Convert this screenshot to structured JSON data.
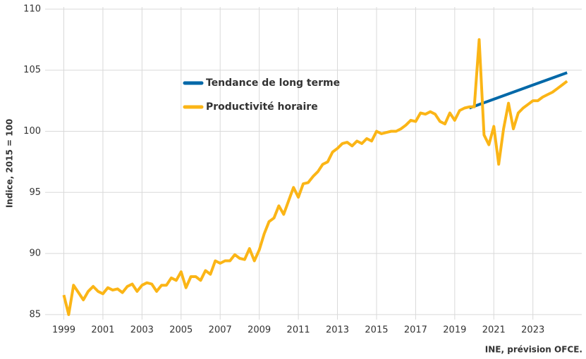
{
  "chart_data": {
    "type": "line",
    "ylabel": "Indice, 2015 = 100",
    "source": "INE, prévision OFCE.",
    "xlim": [
      1997.9,
      2025.5
    ],
    "ylim": [
      84.3,
      110.4
    ],
    "xticks": [
      1999,
      2001,
      2003,
      2005,
      2007,
      2009,
      2011,
      2013,
      2015,
      2017,
      2019,
      2021,
      2023
    ],
    "yticks": [
      85,
      90,
      95,
      100,
      105,
      110
    ],
    "grid": true,
    "legend": "upper-center",
    "series": [
      {
        "name": "Tendance de long terme",
        "color": "#0068a8",
        "x": [
          2019.75,
          2024.75
        ],
        "values": [
          101.9,
          104.8
        ]
      },
      {
        "name": "Productivité horaire",
        "color": "#fbb516",
        "x": [
          1999,
          1999.25,
          1999.5,
          1999.75,
          2000,
          2000.25,
          2000.5,
          2000.75,
          2001,
          2001.25,
          2001.5,
          2001.75,
          2002,
          2002.25,
          2002.5,
          2002.75,
          2003,
          2003.25,
          2003.5,
          2003.75,
          2004,
          2004.25,
          2004.5,
          2004.75,
          2005,
          2005.25,
          2005.5,
          2005.75,
          2006,
          2006.25,
          2006.5,
          2006.75,
          2007,
          2007.25,
          2007.5,
          2007.75,
          2008,
          2008.25,
          2008.5,
          2008.75,
          2009,
          2009.25,
          2009.5,
          2009.75,
          2010,
          2010.25,
          2010.5,
          2010.75,
          2011,
          2011.25,
          2011.5,
          2011.75,
          2012,
          2012.25,
          2012.5,
          2012.75,
          2013,
          2013.25,
          2013.5,
          2013.75,
          2014,
          2014.25,
          2014.5,
          2014.75,
          2015,
          2015.25,
          2015.5,
          2015.75,
          2016,
          2016.25,
          2016.5,
          2016.75,
          2017,
          2017.25,
          2017.5,
          2017.75,
          2018,
          2018.25,
          2018.5,
          2018.75,
          2019,
          2019.25,
          2019.5,
          2019.75,
          2020,
          2020.25,
          2020.5,
          2020.75,
          2021,
          2021.25,
          2021.5,
          2021.75,
          2022,
          2022.25,
          2022.5,
          2022.75,
          2023,
          2023.25,
          2023.5,
          2023.75,
          2024,
          2024.25,
          2024.5,
          2024.75
        ],
        "values": [
          86.6,
          85.0,
          87.4,
          86.8,
          86.2,
          86.9,
          87.3,
          86.9,
          86.7,
          87.2,
          87.0,
          87.1,
          86.8,
          87.3,
          87.5,
          86.9,
          87.4,
          87.6,
          87.5,
          86.9,
          87.4,
          87.4,
          88.0,
          87.8,
          88.5,
          87.2,
          88.1,
          88.1,
          87.8,
          88.6,
          88.3,
          89.4,
          89.2,
          89.4,
          89.4,
          89.9,
          89.6,
          89.5,
          90.4,
          89.4,
          90.3,
          91.6,
          92.6,
          92.9,
          93.9,
          93.2,
          94.3,
          95.4,
          94.6,
          95.7,
          95.8,
          96.3,
          96.7,
          97.3,
          97.5,
          98.3,
          98.6,
          99.0,
          99.1,
          98.8,
          99.2,
          99.0,
          99.4,
          99.2,
          100.0,
          99.8,
          99.9,
          100.0,
          100.0,
          100.2,
          100.5,
          100.9,
          100.8,
          101.5,
          101.4,
          101.6,
          101.4,
          100.8,
          100.6,
          101.5,
          100.9,
          101.7,
          101.9,
          102.0,
          102.0,
          107.5,
          99.7,
          98.9,
          100.4,
          97.3,
          100.2,
          102.3,
          100.2,
          101.5,
          101.9,
          102.2,
          102.5,
          102.5,
          102.8,
          103.0,
          103.2,
          103.5,
          103.8,
          104.1
        ]
      }
    ]
  }
}
